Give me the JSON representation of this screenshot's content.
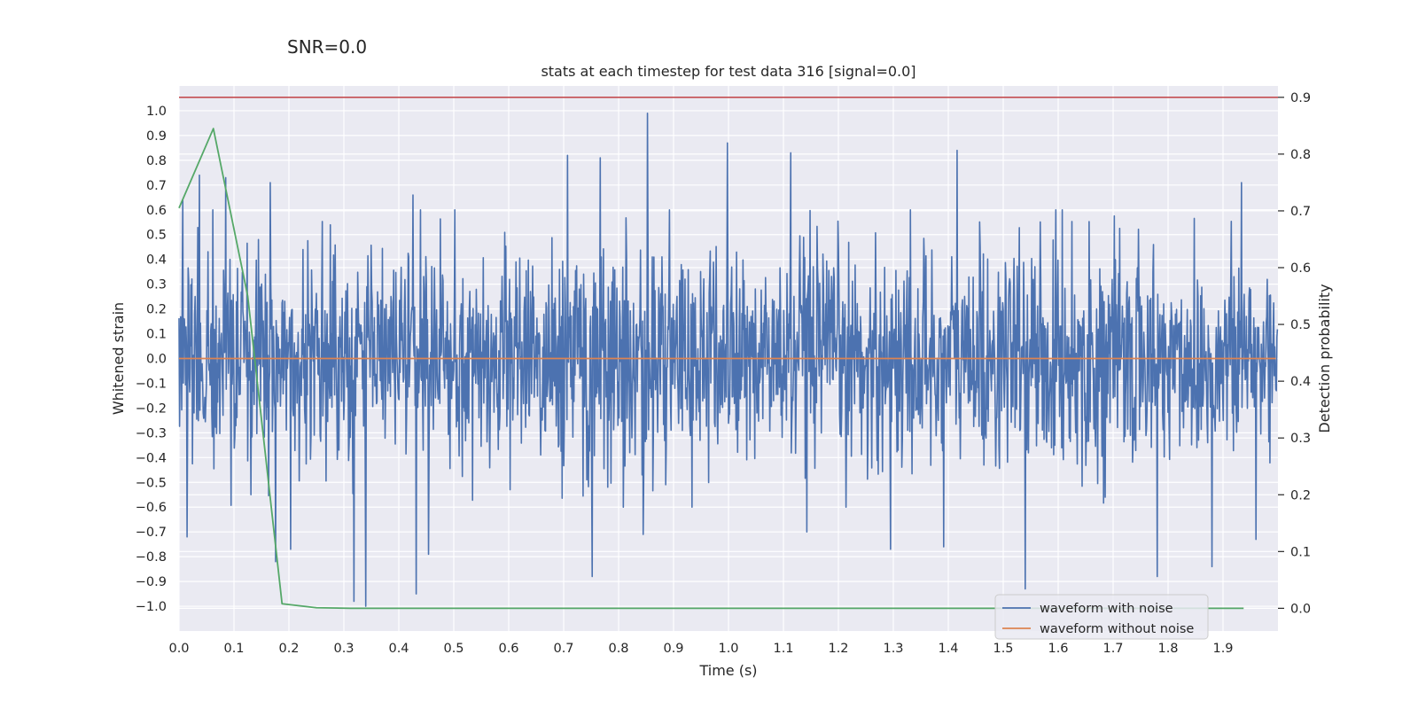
{
  "suptitle": "SNR=0.0",
  "chart_data": {
    "type": "line",
    "title": "stats at each timestep for test data 316 [signal=0.0]",
    "xlabel": "Time (s)",
    "ylabel": "Whitened strain",
    "y2label": "Detection probability",
    "xlim": [
      0.0,
      2.0
    ],
    "ylim": [
      -1.1,
      1.1
    ],
    "y2lim": [
      -0.04,
      0.92
    ],
    "xticks": [
      "0.0",
      "0.1",
      "0.2",
      "0.3",
      "0.4",
      "0.5",
      "0.6",
      "0.7",
      "0.8",
      "0.9",
      "1.0",
      "1.1",
      "1.2",
      "1.3",
      "1.4",
      "1.5",
      "1.6",
      "1.7",
      "1.8",
      "1.9"
    ],
    "xtick_values": [
      0.0,
      0.1,
      0.2,
      0.3,
      0.4,
      0.5,
      0.6,
      0.7,
      0.8,
      0.9,
      1.0,
      1.1,
      1.2,
      1.3,
      1.4,
      1.5,
      1.6,
      1.7,
      1.8,
      1.9
    ],
    "yticks": [
      "1.0",
      "0.9",
      "0.8",
      "0.7",
      "0.6",
      "0.5",
      "0.4",
      "0.3",
      "0.2",
      "0.1",
      "0.0",
      "−0.1",
      "−0.2",
      "−0.3",
      "−0.4",
      "−0.5",
      "−0.6",
      "−0.7",
      "−0.8",
      "−0.9",
      "−1.0"
    ],
    "ytick_values": [
      1.0,
      0.9,
      0.8,
      0.7,
      0.6,
      0.5,
      0.4,
      0.3,
      0.2,
      0.1,
      0.0,
      -0.1,
      -0.2,
      -0.3,
      -0.4,
      -0.5,
      -0.6,
      -0.7,
      -0.8,
      -0.9,
      -1.0
    ],
    "y2ticks": [
      "0.9",
      "0.8",
      "0.7",
      "0.6",
      "0.5",
      "0.4",
      "0.3",
      "0.2",
      "0.1",
      "0.0"
    ],
    "y2tick_values": [
      0.9,
      0.8,
      0.7,
      0.6,
      0.5,
      0.4,
      0.3,
      0.2,
      0.1,
      0.0
    ],
    "grid": true,
    "legend_position": "bottom-right",
    "series": [
      {
        "name": "waveform with noise",
        "color": "#4c72b0",
        "axis": "left",
        "kind": "noise",
        "n_samples": 2048,
        "std": 0.22,
        "peaks": [
          {
            "t": 0.007,
            "v": 0.64
          },
          {
            "t": 0.037,
            "v": 0.74
          },
          {
            "t": 0.085,
            "v": 0.73
          },
          {
            "t": 0.166,
            "v": 0.71
          },
          {
            "t": 0.176,
            "v": 0.76
          },
          {
            "t": 0.426,
            "v": 0.66
          },
          {
            "t": 0.707,
            "v": 0.82
          },
          {
            "t": 0.767,
            "v": 0.81
          },
          {
            "t": 0.853,
            "v": 0.99
          },
          {
            "t": 0.998,
            "v": 0.87
          },
          {
            "t": 1.113,
            "v": 0.83
          },
          {
            "t": 1.416,
            "v": 0.84
          },
          {
            "t": 1.934,
            "v": 0.71
          },
          {
            "t": 0.015,
            "v": -0.72
          },
          {
            "t": 0.176,
            "v": -0.82
          },
          {
            "t": 0.203,
            "v": -0.77
          },
          {
            "t": 0.318,
            "v": -0.98
          },
          {
            "t": 0.34,
            "v": -1.0
          },
          {
            "t": 0.432,
            "v": -0.95
          },
          {
            "t": 0.454,
            "v": -0.79
          },
          {
            "t": 0.752,
            "v": -0.88
          },
          {
            "t": 0.845,
            "v": -0.71
          },
          {
            "t": 1.143,
            "v": -0.7
          },
          {
            "t": 1.295,
            "v": -0.77
          },
          {
            "t": 1.392,
            "v": -0.76
          },
          {
            "t": 1.54,
            "v": -0.93
          },
          {
            "t": 1.78,
            "v": -0.88
          },
          {
            "t": 1.88,
            "v": -0.84
          },
          {
            "t": 1.96,
            "v": -0.73
          }
        ]
      },
      {
        "name": "waveform without noise",
        "color": "#dd8452",
        "axis": "left",
        "x": [
          0.0,
          1.996
        ],
        "y": [
          0.0,
          0.0
        ]
      },
      {
        "name": "detection probability",
        "color": "#55a868",
        "axis": "right",
        "x": [
          0.0,
          0.0625,
          0.125,
          0.1875,
          0.25,
          0.3125,
          0.375,
          0.4375,
          0.5,
          0.5625,
          0.625,
          0.6875,
          0.75,
          0.8125,
          0.875,
          0.9375,
          1.0,
          1.0625,
          1.125,
          1.1875,
          1.25,
          1.3125,
          1.375,
          1.4375,
          1.5,
          1.5625,
          1.625,
          1.6875,
          1.75,
          1.8125,
          1.875,
          1.9375
        ],
        "y": [
          0.705,
          0.845,
          0.55,
          0.008,
          0.001,
          0.0,
          0.0,
          0.0,
          0.0,
          0.0,
          0.0,
          0.0,
          0.0,
          0.0,
          0.0,
          0.0,
          0.0,
          0.0,
          0.0,
          0.0,
          0.0,
          0.0,
          0.0,
          0.0,
          0.0,
          0.0,
          0.0,
          0.0,
          0.0,
          0.0,
          0.0,
          0.0
        ]
      }
    ],
    "hlines": [
      {
        "name": "threshold",
        "axis": "right",
        "value": 0.9,
        "color": "#c44e52"
      }
    ],
    "legend": [
      {
        "label": "waveform with noise",
        "color": "#4c72b0"
      },
      {
        "label": "waveform without noise",
        "color": "#dd8452"
      }
    ]
  }
}
